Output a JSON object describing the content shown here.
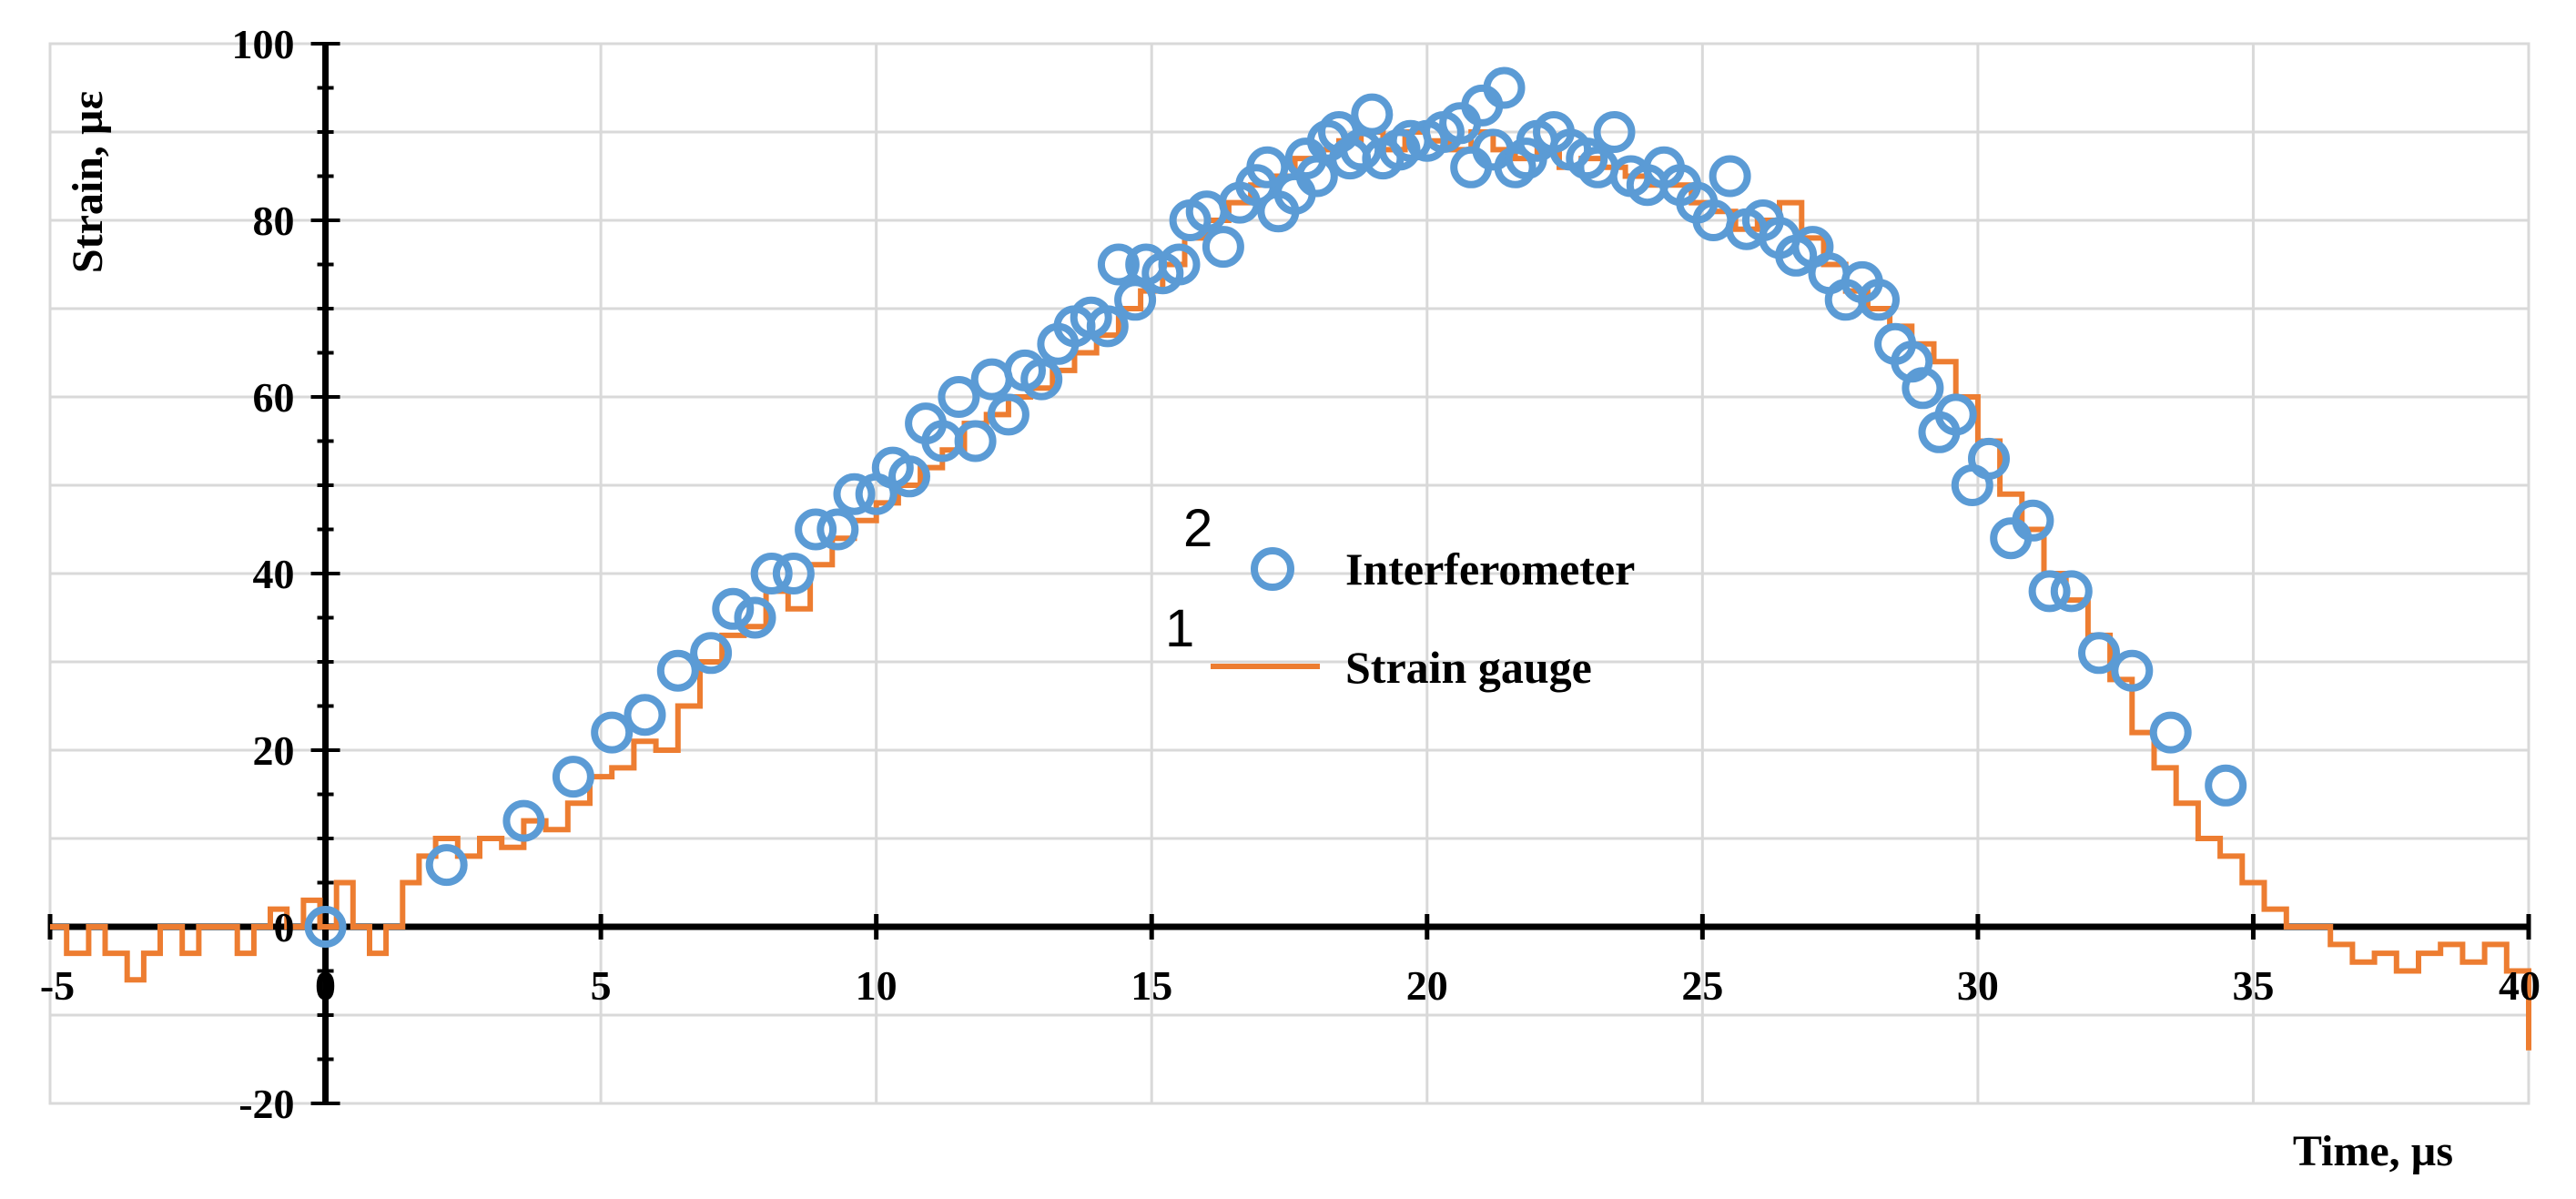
{
  "chart_data": {
    "type": "scatter",
    "xlabel": "Time, µs",
    "ylabel": "Strain, µε",
    "xlim": [
      -5,
      40
    ],
    "ylim": [
      -20,
      100
    ],
    "xticks": [
      "-5",
      "0",
      "5",
      "10",
      "15",
      "20",
      "25",
      "30",
      "35",
      "40"
    ],
    "yticks": [
      "-20",
      "0",
      "20",
      "40",
      "60",
      "80",
      "100"
    ],
    "grid": true,
    "legend_position": "center-right",
    "series": [
      {
        "name": "Interferometer",
        "number": "2",
        "kind": "scatter",
        "marker": "open-circle",
        "color": "#5b9bd5",
        "points": [
          [
            0,
            0
          ],
          [
            2.2,
            7
          ],
          [
            3.6,
            12
          ],
          [
            4.5,
            17
          ],
          [
            5.2,
            22
          ],
          [
            5.8,
            24
          ],
          [
            6.4,
            29
          ],
          [
            7.0,
            31
          ],
          [
            7.4,
            36
          ],
          [
            7.8,
            35
          ],
          [
            8.1,
            40
          ],
          [
            8.5,
            40
          ],
          [
            8.9,
            45
          ],
          [
            9.3,
            45
          ],
          [
            9.6,
            49
          ],
          [
            10.0,
            49
          ],
          [
            10.3,
            52
          ],
          [
            10.6,
            51
          ],
          [
            10.9,
            57
          ],
          [
            11.2,
            55
          ],
          [
            11.5,
            60
          ],
          [
            11.8,
            55
          ],
          [
            12.1,
            62
          ],
          [
            12.4,
            58
          ],
          [
            12.7,
            63
          ],
          [
            13.0,
            62
          ],
          [
            13.3,
            66
          ],
          [
            13.6,
            68
          ],
          [
            13.9,
            69
          ],
          [
            14.2,
            68
          ],
          [
            14.4,
            75
          ],
          [
            14.7,
            71
          ],
          [
            14.9,
            75
          ],
          [
            15.2,
            74
          ],
          [
            15.5,
            75
          ],
          [
            15.7,
            80
          ],
          [
            16.0,
            81
          ],
          [
            16.3,
            77
          ],
          [
            16.6,
            82
          ],
          [
            16.9,
            84
          ],
          [
            17.1,
            86
          ],
          [
            17.3,
            81
          ],
          [
            17.6,
            83
          ],
          [
            17.8,
            87
          ],
          [
            18.0,
            85
          ],
          [
            18.2,
            89
          ],
          [
            18.4,
            90
          ],
          [
            18.6,
            87
          ],
          [
            18.8,
            88
          ],
          [
            19.0,
            92
          ],
          [
            19.2,
            87
          ],
          [
            19.5,
            88
          ],
          [
            19.7,
            89
          ],
          [
            20.0,
            89
          ],
          [
            20.3,
            90
          ],
          [
            20.6,
            91
          ],
          [
            20.8,
            86
          ],
          [
            21.0,
            93
          ],
          [
            21.2,
            88
          ],
          [
            21.4,
            95
          ],
          [
            21.6,
            86
          ],
          [
            21.8,
            87
          ],
          [
            22.0,
            89
          ],
          [
            22.3,
            90
          ],
          [
            22.6,
            88
          ],
          [
            22.9,
            87
          ],
          [
            23.1,
            86
          ],
          [
            23.4,
            90
          ],
          [
            23.7,
            85
          ],
          [
            24.0,
            84
          ],
          [
            24.3,
            86
          ],
          [
            24.6,
            84
          ],
          [
            24.9,
            82
          ],
          [
            25.2,
            80
          ],
          [
            25.5,
            85
          ],
          [
            25.8,
            79
          ],
          [
            26.1,
            80
          ],
          [
            26.4,
            78
          ],
          [
            26.7,
            76
          ],
          [
            27.0,
            77
          ],
          [
            27.3,
            74
          ],
          [
            27.6,
            71
          ],
          [
            27.9,
            73
          ],
          [
            28.2,
            71
          ],
          [
            28.5,
            66
          ],
          [
            28.8,
            64
          ],
          [
            29.0,
            61
          ],
          [
            29.3,
            56
          ],
          [
            29.6,
            58
          ],
          [
            29.9,
            50
          ],
          [
            30.2,
            53
          ],
          [
            30.6,
            44
          ],
          [
            31.0,
            46
          ],
          [
            31.3,
            38
          ],
          [
            31.7,
            38
          ],
          [
            32.2,
            31
          ],
          [
            32.8,
            29
          ],
          [
            33.5,
            22
          ],
          [
            34.5,
            16
          ]
        ]
      },
      {
        "name": "Strain gauge",
        "number": "1",
        "kind": "line",
        "style": "step",
        "color": "#ed7d31",
        "points": [
          [
            -5,
            0
          ],
          [
            -4.7,
            -3
          ],
          [
            -4.3,
            0
          ],
          [
            -4.0,
            -3
          ],
          [
            -3.6,
            -6
          ],
          [
            -3.3,
            -3
          ],
          [
            -3.0,
            0
          ],
          [
            -2.6,
            -3
          ],
          [
            -2.3,
            0
          ],
          [
            -1.9,
            0
          ],
          [
            -1.6,
            -3
          ],
          [
            -1.3,
            0
          ],
          [
            -1.0,
            2
          ],
          [
            -0.7,
            0
          ],
          [
            -0.4,
            3
          ],
          [
            -0.1,
            0
          ],
          [
            0.2,
            5
          ],
          [
            0.5,
            0
          ],
          [
            0.8,
            -3
          ],
          [
            1.1,
            0
          ],
          [
            1.4,
            5
          ],
          [
            1.7,
            8
          ],
          [
            2.0,
            10
          ],
          [
            2.4,
            8
          ],
          [
            2.8,
            10
          ],
          [
            3.2,
            9
          ],
          [
            3.6,
            12
          ],
          [
            4.0,
            11
          ],
          [
            4.4,
            14
          ],
          [
            4.8,
            17
          ],
          [
            5.2,
            18
          ],
          [
            5.6,
            21
          ],
          [
            6.0,
            20
          ],
          [
            6.4,
            25
          ],
          [
            6.8,
            30
          ],
          [
            7.2,
            33
          ],
          [
            7.6,
            34
          ],
          [
            8.0,
            38
          ],
          [
            8.4,
            36
          ],
          [
            8.8,
            41
          ],
          [
            9.2,
            44
          ],
          [
            9.6,
            46
          ],
          [
            10.0,
            48
          ],
          [
            10.4,
            50
          ],
          [
            10.8,
            52
          ],
          [
            11.2,
            54
          ],
          [
            11.6,
            57
          ],
          [
            12.0,
            58
          ],
          [
            12.4,
            60
          ],
          [
            12.8,
            61
          ],
          [
            13.2,
            63
          ],
          [
            13.6,
            65
          ],
          [
            14.0,
            67
          ],
          [
            14.4,
            70
          ],
          [
            14.8,
            72
          ],
          [
            15.2,
            75
          ],
          [
            15.6,
            78
          ],
          [
            16.0,
            80
          ],
          [
            16.4,
            82
          ],
          [
            16.8,
            84
          ],
          [
            17.2,
            85
          ],
          [
            17.6,
            87
          ],
          [
            18.0,
            88
          ],
          [
            18.4,
            89
          ],
          [
            18.8,
            90
          ],
          [
            19.2,
            88
          ],
          [
            19.6,
            90
          ],
          [
            20.0,
            89
          ],
          [
            20.4,
            88
          ],
          [
            20.8,
            90
          ],
          [
            21.2,
            88
          ],
          [
            21.6,
            87
          ],
          [
            22.0,
            88
          ],
          [
            22.4,
            86
          ],
          [
            22.8,
            87
          ],
          [
            23.2,
            86
          ],
          [
            23.6,
            85
          ],
          [
            24.0,
            84
          ],
          [
            24.4,
            84
          ],
          [
            24.8,
            82
          ],
          [
            25.2,
            81
          ],
          [
            25.6,
            79
          ],
          [
            26.0,
            80
          ],
          [
            26.4,
            82
          ],
          [
            26.8,
            78
          ],
          [
            27.2,
            75
          ],
          [
            27.6,
            72
          ],
          [
            28.0,
            70
          ],
          [
            28.4,
            68
          ],
          [
            28.8,
            66
          ],
          [
            29.2,
            64
          ],
          [
            29.6,
            60
          ],
          [
            30.0,
            55
          ],
          [
            30.4,
            49
          ],
          [
            30.8,
            45
          ],
          [
            31.2,
            40
          ],
          [
            31.6,
            37
          ],
          [
            32.0,
            33
          ],
          [
            32.4,
            28
          ],
          [
            32.8,
            22
          ],
          [
            33.2,
            18
          ],
          [
            33.6,
            14
          ],
          [
            34.0,
            10
          ],
          [
            34.4,
            8
          ],
          [
            34.8,
            5
          ],
          [
            35.2,
            2
          ],
          [
            35.6,
            0
          ],
          [
            36.0,
            0
          ],
          [
            36.4,
            -2
          ],
          [
            36.8,
            -4
          ],
          [
            37.2,
            -3
          ],
          [
            37.6,
            -5
          ],
          [
            38.0,
            -3
          ],
          [
            38.4,
            -2
          ],
          [
            38.8,
            -4
          ],
          [
            39.2,
            -2
          ],
          [
            39.6,
            -5
          ],
          [
            40.0,
            -14
          ]
        ]
      }
    ]
  }
}
